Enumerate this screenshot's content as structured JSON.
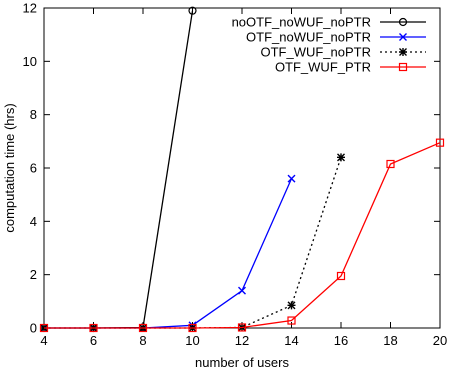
{
  "chart_data": {
    "type": "line",
    "title": "",
    "xlabel": "number of users",
    "ylabel": "computation time (hrs)",
    "xlim": [
      4,
      20
    ],
    "ylim": [
      0,
      12
    ],
    "xticks": [
      4,
      6,
      8,
      10,
      12,
      14,
      16,
      18,
      20
    ],
    "yticks": [
      0,
      2,
      4,
      6,
      8,
      10,
      12
    ],
    "grid": false,
    "legend_position": "top-right",
    "series": [
      {
        "name": "noOTF_noWUF_noPTR",
        "color": "#000000",
        "dash": "solid",
        "marker": "circle",
        "x": [
          4,
          6,
          8,
          10
        ],
        "y": [
          0.0,
          0.0,
          0.02,
          11.9
        ]
      },
      {
        "name": "OTF_noWUF_noPTR",
        "color": "#0000ff",
        "dash": "solid",
        "marker": "x",
        "x": [
          4,
          6,
          8,
          10,
          12,
          14
        ],
        "y": [
          0.0,
          0.0,
          0.0,
          0.1,
          1.4,
          5.6
        ]
      },
      {
        "name": "OTF_WUF_noPTR",
        "color": "#000000",
        "dash": "dotted",
        "marker": "star",
        "x": [
          4,
          6,
          8,
          10,
          12,
          14,
          16
        ],
        "y": [
          0.0,
          0.0,
          0.0,
          0.0,
          0.02,
          0.85,
          6.4
        ]
      },
      {
        "name": "OTF_WUF_PTR",
        "color": "#ff0000",
        "dash": "solid",
        "marker": "square",
        "x": [
          4,
          6,
          8,
          10,
          12,
          14,
          16,
          18,
          20
        ],
        "y": [
          0.0,
          0.0,
          0.0,
          0.0,
          0.02,
          0.28,
          1.95,
          6.15,
          6.95
        ]
      }
    ]
  }
}
